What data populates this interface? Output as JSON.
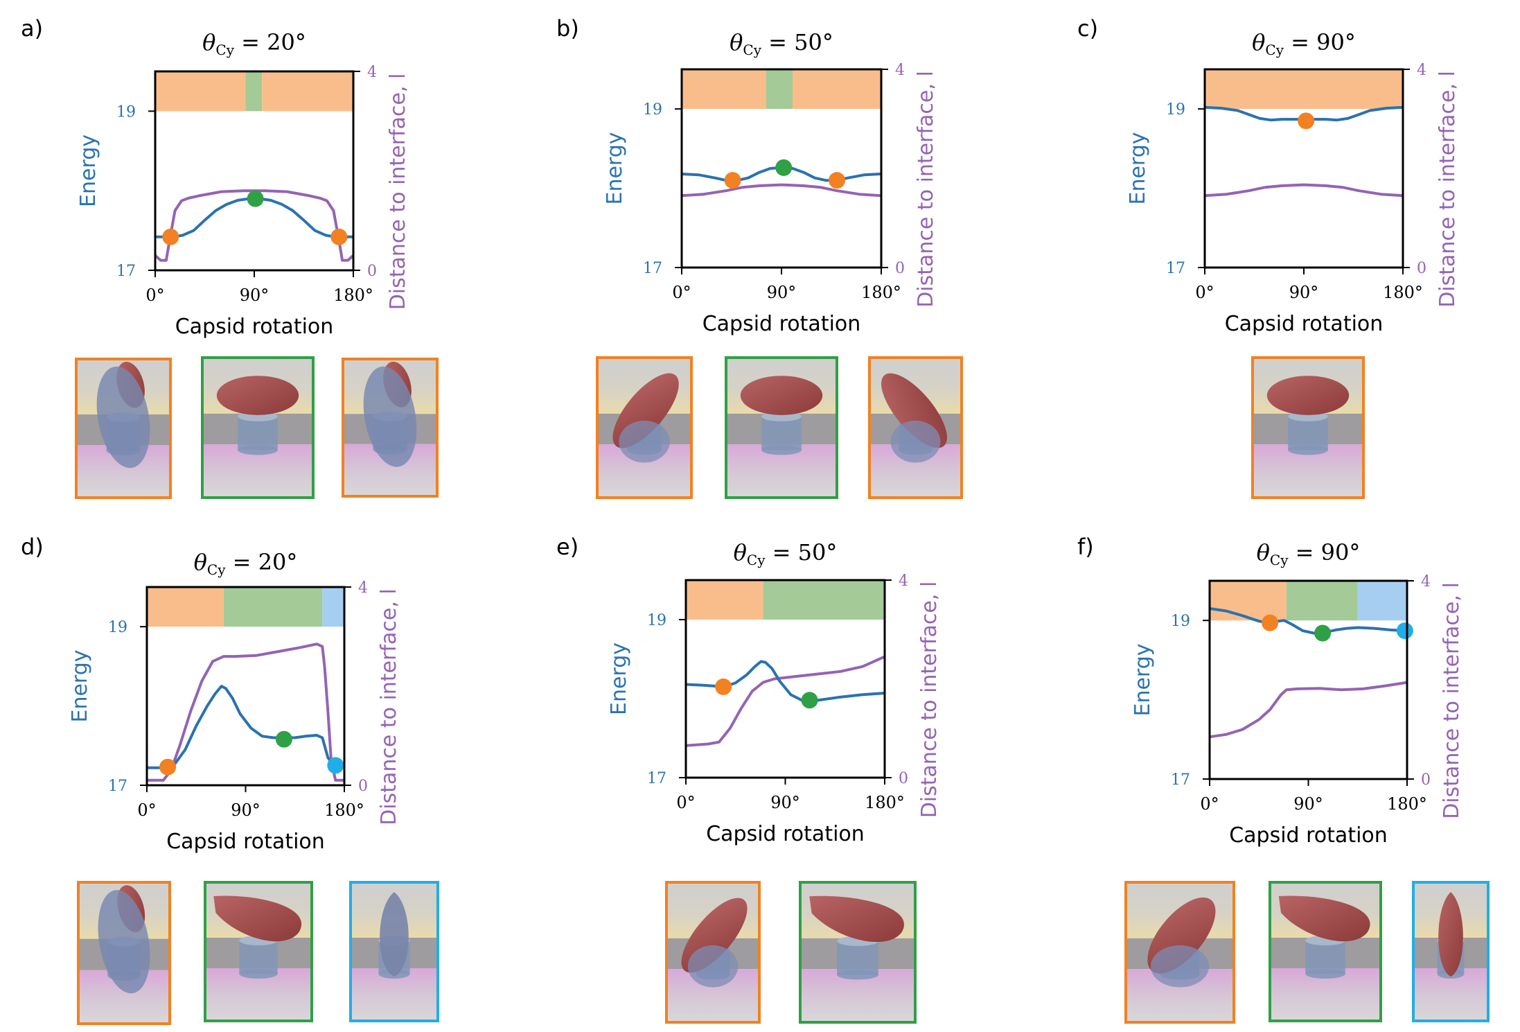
{
  "colors": {
    "energy": "#2a72b0",
    "distance": "#9463b3",
    "orange": "#f28122",
    "green": "#2fa046",
    "blue": "#21aee6",
    "orange_band": "#f9bd8b",
    "green_band": "#a3ca97",
    "blue_band": "#a6cef0"
  },
  "chart_data": [
    {
      "panel": "a)",
      "type": "line",
      "title_sym": "θ",
      "title_sub": "Cy",
      "title_val": " = 20°",
      "xlabel": "Capsid rotation",
      "ylabel_left": "Energy",
      "ylabel_right": "Distance to interface, l",
      "xticks": [
        "0°",
        "90°",
        "180°"
      ],
      "yticks_left": [
        "17",
        "19"
      ],
      "yticks_right": [
        "0",
        "4"
      ],
      "xlim": [
        0,
        180
      ],
      "ylim_left": [
        17,
        19.5
      ],
      "ylim_right": [
        0,
        4
      ],
      "bands": [
        {
          "from": 0,
          "to": 82,
          "color": "orange"
        },
        {
          "from": 82,
          "to": 97,
          "color": "green"
        },
        {
          "from": 97,
          "to": 180,
          "color": "orange"
        }
      ],
      "energy": {
        "x": [
          0,
          8,
          16,
          25,
          35,
          45,
          55,
          65,
          75,
          85,
          90,
          95,
          105,
          115,
          125,
          135,
          145,
          155,
          164,
          172,
          180
        ],
        "y": [
          17.42,
          17.42,
          17.42,
          17.44,
          17.5,
          17.63,
          17.75,
          17.83,
          17.88,
          17.9,
          17.9,
          17.9,
          17.88,
          17.83,
          17.75,
          17.63,
          17.5,
          17.44,
          17.42,
          17.42,
          17.42
        ]
      },
      "distance": {
        "x": [
          0,
          5,
          10,
          13,
          18,
          24,
          30,
          40,
          60,
          80,
          90,
          100,
          120,
          140,
          150,
          156,
          162,
          167,
          170,
          175,
          180
        ],
        "y": [
          0.3,
          0.2,
          0.2,
          0.6,
          1.2,
          1.4,
          1.45,
          1.5,
          1.58,
          1.6,
          1.6,
          1.6,
          1.58,
          1.5,
          1.45,
          1.4,
          1.2,
          0.6,
          0.2,
          0.2,
          0.3
        ]
      },
      "markers": [
        {
          "x": 14,
          "y": 17.42,
          "color": "orange"
        },
        {
          "x": 91,
          "y": 17.9,
          "color": "green"
        },
        {
          "x": 167,
          "y": 17.42,
          "color": "orange"
        }
      ],
      "thumbs": [
        {
          "color": "orange",
          "pose": "vertical"
        },
        {
          "color": "green",
          "pose": "flat"
        },
        {
          "color": "orange",
          "pose": "vertical"
        }
      ]
    },
    {
      "panel": "b)",
      "type": "line",
      "title_sym": "θ",
      "title_sub": "Cy",
      "title_val": " = 50°",
      "xlabel": "Capsid rotation",
      "ylabel_left": "Energy",
      "ylabel_right": "Distance to interface, l",
      "xticks": [
        "0°",
        "90°",
        "180°"
      ],
      "yticks_left": [
        "17",
        "19"
      ],
      "yticks_right": [
        "0",
        "4"
      ],
      "xlim": [
        0,
        180
      ],
      "ylim_left": [
        17,
        19.5
      ],
      "ylim_right": [
        0,
        4
      ],
      "bands": [
        {
          "from": 0,
          "to": 76,
          "color": "orange"
        },
        {
          "from": 76,
          "to": 100,
          "color": "green"
        },
        {
          "from": 100,
          "to": 180,
          "color": "orange"
        }
      ],
      "energy": {
        "x": [
          0,
          15,
          30,
          40,
          50,
          60,
          70,
          80,
          90,
          100,
          110,
          120,
          130,
          140,
          150,
          165,
          180
        ],
        "y": [
          18.18,
          18.17,
          18.13,
          18.1,
          18.1,
          18.13,
          18.2,
          18.25,
          18.26,
          18.25,
          18.2,
          18.13,
          18.1,
          18.1,
          18.13,
          18.17,
          18.18
        ]
      },
      "distance": {
        "x": [
          0,
          20,
          40,
          55,
          70,
          90,
          110,
          125,
          140,
          160,
          180
        ],
        "y": [
          1.45,
          1.48,
          1.55,
          1.62,
          1.65,
          1.67,
          1.65,
          1.62,
          1.55,
          1.48,
          1.45
        ]
      },
      "markers": [
        {
          "x": 46,
          "y": 18.1,
          "color": "orange"
        },
        {
          "x": 92,
          "y": 18.26,
          "color": "green"
        },
        {
          "x": 140,
          "y": 18.1,
          "color": "orange"
        }
      ],
      "thumbs": [
        {
          "color": "orange",
          "pose": "tiltR"
        },
        {
          "color": "green",
          "pose": "flat"
        },
        {
          "color": "orange",
          "pose": "tiltL"
        }
      ]
    },
    {
      "panel": "c)",
      "type": "line",
      "title_sym": "θ",
      "title_sub": "Cy",
      "title_val": " = 90°",
      "xlabel": "Capsid rotation",
      "ylabel_left": "Energy",
      "ylabel_right": "Distance to interface, l",
      "xticks": [
        "0°",
        "90°",
        "180°"
      ],
      "yticks_left": [
        "17",
        "19"
      ],
      "yticks_right": [
        "0",
        "4"
      ],
      "xlim": [
        0,
        180
      ],
      "ylim_left": [
        17,
        19.5
      ],
      "ylim_right": [
        0,
        4
      ],
      "bands": [
        {
          "from": 0,
          "to": 180,
          "color": "orange"
        }
      ],
      "energy": {
        "x": [
          0,
          15,
          30,
          40,
          50,
          60,
          70,
          90,
          110,
          120,
          130,
          140,
          150,
          165,
          180
        ],
        "y": [
          19.02,
          19.01,
          18.98,
          18.93,
          18.88,
          18.86,
          18.87,
          18.87,
          18.87,
          18.86,
          18.88,
          18.93,
          18.98,
          19.01,
          19.02
        ]
      },
      "distance": {
        "x": [
          0,
          20,
          40,
          55,
          70,
          90,
          110,
          125,
          140,
          160,
          180
        ],
        "y": [
          1.45,
          1.48,
          1.55,
          1.62,
          1.65,
          1.67,
          1.65,
          1.62,
          1.55,
          1.48,
          1.45
        ]
      },
      "markers": [
        {
          "x": 92,
          "y": 18.85,
          "color": "orange"
        }
      ],
      "thumbs": [
        {
          "color": "orange",
          "pose": "flat"
        }
      ]
    },
    {
      "panel": "d)",
      "type": "line",
      "title_sym": "θ",
      "title_sub": "Cy",
      "title_val": " = 20°",
      "xlabel": "Capsid rotation",
      "ylabel_left": "Energy",
      "ylabel_right": "Distance to interface, l",
      "xticks": [
        "0°",
        "90°",
        "180°"
      ],
      "yticks_left": [
        "17",
        "19"
      ],
      "yticks_right": [
        "0",
        "4"
      ],
      "xlim": [
        0,
        180
      ],
      "ylim_left": [
        17,
        19.5
      ],
      "ylim_right": [
        0,
        4
      ],
      "bands": [
        {
          "from": 0,
          "to": 70,
          "color": "orange"
        },
        {
          "from": 70,
          "to": 160,
          "color": "green"
        },
        {
          "from": 160,
          "to": 180,
          "color": "blue"
        }
      ],
      "energy": {
        "x": [
          0,
          10,
          20,
          25,
          35,
          45,
          55,
          62,
          68,
          72,
          78,
          85,
          95,
          105,
          115,
          125,
          135,
          145,
          155,
          160,
          165,
          170,
          175,
          180
        ],
        "y": [
          17.22,
          17.22,
          17.22,
          17.26,
          17.45,
          17.75,
          18.0,
          18.15,
          18.25,
          18.22,
          18.1,
          17.9,
          17.72,
          17.62,
          17.6,
          17.6,
          17.6,
          17.62,
          17.63,
          17.6,
          17.35,
          17.25,
          17.25,
          17.25
        ]
      },
      "distance": {
        "x": [
          0,
          10,
          15,
          22,
          30,
          40,
          50,
          60,
          70,
          80,
          100,
          120,
          140,
          155,
          160,
          162,
          165,
          168,
          172,
          180
        ],
        "y": [
          0.1,
          0.1,
          0.1,
          0.3,
          0.8,
          1.5,
          2.1,
          2.5,
          2.6,
          2.6,
          2.62,
          2.7,
          2.78,
          2.85,
          2.8,
          2.4,
          1.5,
          0.5,
          0.1,
          0.1
        ]
      },
      "markers": [
        {
          "x": 19,
          "y": 17.23,
          "color": "orange"
        },
        {
          "x": 125,
          "y": 17.58,
          "color": "green"
        },
        {
          "x": 172,
          "y": 17.25,
          "color": "blue"
        }
      ],
      "thumbs": [
        {
          "color": "orange",
          "pose": "vertical"
        },
        {
          "color": "green",
          "pose": "pearR"
        },
        {
          "color": "blue",
          "pose": "upright"
        }
      ]
    },
    {
      "panel": "e)",
      "type": "line",
      "title_sym": "θ",
      "title_sub": "Cy",
      "title_val": " = 50°",
      "xlabel": "Capsid rotation",
      "ylabel_left": "Energy",
      "ylabel_right": "Distance to interface, l",
      "xticks": [
        "0°",
        "90°",
        "180°"
      ],
      "yticks_left": [
        "17",
        "19"
      ],
      "yticks_right": [
        "0",
        "4"
      ],
      "xlim": [
        0,
        180
      ],
      "ylim_left": [
        17,
        19.5
      ],
      "ylim_right": [
        0,
        4
      ],
      "bands": [
        {
          "from": 0,
          "to": 70,
          "color": "orange"
        },
        {
          "from": 70,
          "to": 180,
          "color": "green"
        }
      ],
      "energy": {
        "x": [
          0,
          15,
          25,
          35,
          45,
          55,
          62,
          68,
          72,
          78,
          85,
          95,
          105,
          115,
          125,
          140,
          160,
          180
        ],
        "y": [
          18.18,
          18.17,
          18.16,
          18.15,
          18.2,
          18.3,
          18.4,
          18.47,
          18.46,
          18.38,
          18.22,
          18.05,
          17.98,
          17.97,
          17.99,
          18.02,
          18.05,
          18.07
        ]
      },
      "distance": {
        "x": [
          0,
          20,
          30,
          40,
          50,
          60,
          70,
          80,
          100,
          120,
          140,
          160,
          180
        ],
        "y": [
          0.65,
          0.68,
          0.72,
          1.0,
          1.4,
          1.75,
          1.93,
          2.0,
          2.05,
          2.1,
          2.15,
          2.25,
          2.45
        ]
      },
      "markers": [
        {
          "x": 34,
          "y": 18.15,
          "color": "orange"
        },
        {
          "x": 112,
          "y": 17.98,
          "color": "green"
        }
      ],
      "thumbs": [
        {
          "color": "orange",
          "pose": "tiltR"
        },
        {
          "color": "green",
          "pose": "pearR"
        }
      ]
    },
    {
      "panel": "f)",
      "type": "line",
      "title_sym": "θ",
      "title_sub": "Cy",
      "title_val": " = 90°",
      "xlabel": "Capsid rotation",
      "ylabel_left": "Energy",
      "ylabel_right": "Distance to interface, l",
      "xticks": [
        "0°",
        "90°",
        "180°"
      ],
      "yticks_left": [
        "17",
        "19"
      ],
      "yticks_right": [
        "0",
        "4"
      ],
      "xlim": [
        0,
        180
      ],
      "ylim_left": [
        17,
        19.5
      ],
      "ylim_right": [
        0,
        4
      ],
      "bands": [
        {
          "from": 0,
          "to": 70,
          "color": "orange"
        },
        {
          "from": 70,
          "to": 135,
          "color": "green"
        },
        {
          "from": 135,
          "to": 180,
          "color": "blue"
        }
      ],
      "energy": {
        "x": [
          0,
          15,
          30,
          45,
          55,
          62,
          68,
          75,
          85,
          95,
          105,
          115,
          125,
          135,
          150,
          165,
          180
        ],
        "y": [
          19.15,
          19.12,
          19.06,
          18.99,
          18.97,
          18.99,
          19.0,
          18.95,
          18.87,
          18.84,
          18.85,
          18.88,
          18.9,
          18.91,
          18.9,
          18.88,
          18.87
        ]
      },
      "distance": {
        "x": [
          0,
          15,
          30,
          45,
          55,
          65,
          70,
          80,
          100,
          120,
          140,
          160,
          180
        ],
        "y": [
          0.85,
          0.9,
          1.0,
          1.2,
          1.4,
          1.7,
          1.8,
          1.82,
          1.83,
          1.8,
          1.82,
          1.88,
          1.95
        ]
      },
      "markers": [
        {
          "x": 55,
          "y": 18.97,
          "color": "orange"
        },
        {
          "x": 103,
          "y": 18.84,
          "color": "green"
        },
        {
          "x": 178,
          "y": 18.87,
          "color": "blue"
        }
      ],
      "thumbs": [
        {
          "color": "orange",
          "pose": "tiltR"
        },
        {
          "color": "green",
          "pose": "pearR"
        },
        {
          "color": "blue",
          "pose": "upright"
        }
      ]
    }
  ]
}
